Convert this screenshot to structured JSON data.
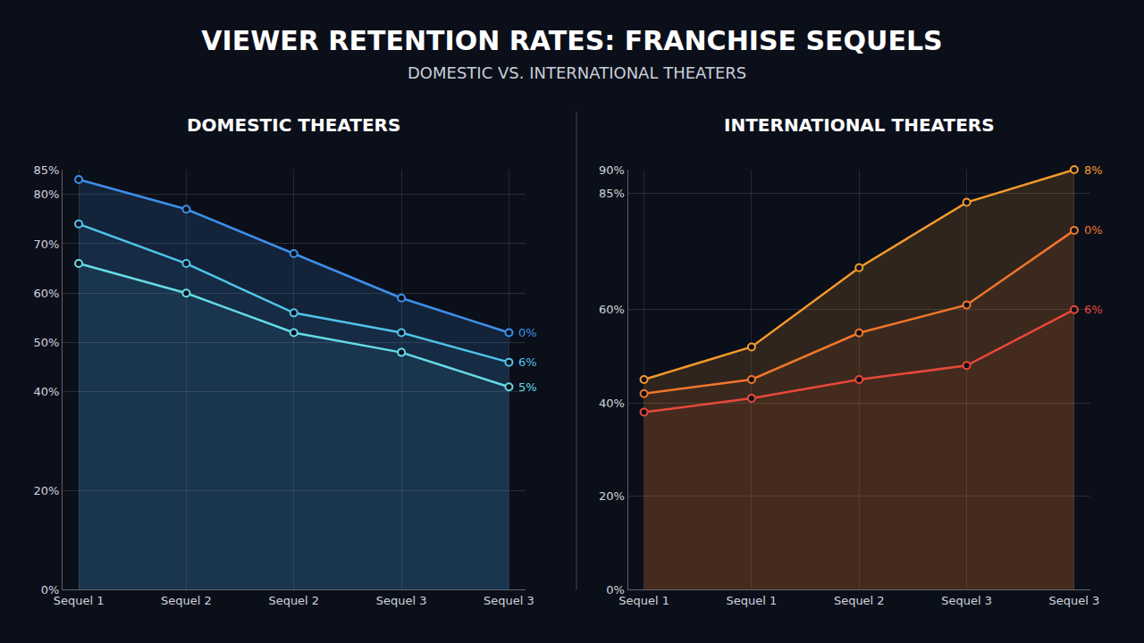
{
  "title": "VIEWER RETENTION RATES: FRANCHISE SEQUELS",
  "subtitle": "DOMESTIC VS. INTERNATIONAL THEATERS",
  "chart_data": [
    {
      "type": "line",
      "title": "DOMESTIC THEATERS",
      "categories": [
        "Sequel 1",
        "Sequel 2",
        "Sequel 2",
        "Sequel 3",
        "Sequel 3"
      ],
      "series": [
        {
          "color": "#3d8fe8",
          "values": [
            83,
            77,
            68,
            59,
            52
          ],
          "end_label": "0%"
        },
        {
          "color": "#4fc3ea",
          "values": [
            74,
            66,
            56,
            52,
            46
          ],
          "end_label": "6%"
        },
        {
          "color": "#66dbe6",
          "values": [
            66,
            60,
            52,
            48,
            41
          ],
          "end_label": "5%"
        }
      ],
      "ylim": [
        0,
        85
      ],
      "yticks": [
        {
          "value": 0,
          "label": "0%"
        },
        {
          "value": 20,
          "label": "20%"
        },
        {
          "value": 40,
          "label": "40%"
        },
        {
          "value": 50,
          "label": "50%"
        },
        {
          "value": 60,
          "label": "60%"
        },
        {
          "value": 70,
          "label": "70%"
        },
        {
          "value": 80,
          "label": "80%"
        },
        {
          "value": 85,
          "label": "85%"
        }
      ],
      "grid": true,
      "marker": "circle"
    },
    {
      "type": "line",
      "title": "INTERNATIONAL THEATERS",
      "categories": [
        "Sequel 1",
        "Sequel 1",
        "Sequel 2",
        "Sequel 3",
        "Sequel 3"
      ],
      "series": [
        {
          "color": "#f39a2b",
          "values": [
            45,
            52,
            69,
            83,
            90
          ],
          "end_label": "8%"
        },
        {
          "color": "#f0762c",
          "values": [
            42,
            45,
            55,
            61,
            77
          ],
          "end_label": "0%"
        },
        {
          "color": "#e8483a",
          "values": [
            38,
            41,
            45,
            48,
            60
          ],
          "end_label": "6%"
        }
      ],
      "ylim": [
        0,
        90
      ],
      "yticks": [
        {
          "value": 0,
          "label": "0%"
        },
        {
          "value": 20,
          "label": "20%"
        },
        {
          "value": 40,
          "label": "40%"
        },
        {
          "value": 40,
          "label": "40%"
        },
        {
          "value": 60,
          "label": "60%"
        },
        {
          "value": 85,
          "label": "85%"
        },
        {
          "value": 90,
          "label": "90%"
        },
        {
          "value": 90,
          "label": "90%"
        }
      ],
      "grid": true,
      "marker": "circle"
    }
  ]
}
